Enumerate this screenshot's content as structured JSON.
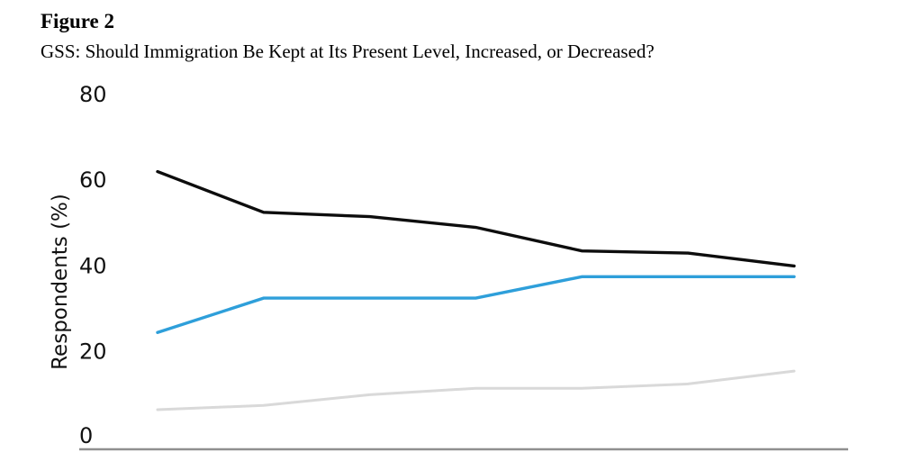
{
  "figure": {
    "label": "Figure 2",
    "subtitle": "GSS: Should Immigration Be Kept at Its Present Level, Increased, or Decreased?"
  },
  "chart_data": {
    "type": "line",
    "title": "Figure 2",
    "subtitle": "GSS: Should Immigration Be Kept at Its Present Level, Increased, or Decreased?",
    "ylabel": "Respondents (%)",
    "xlabel": "",
    "ylim": [
      0,
      80
    ],
    "yticks": [
      "80",
      "60",
      "40",
      "20",
      "0"
    ],
    "x": [
      1,
      2,
      3,
      4,
      5,
      6,
      7
    ],
    "x_tick_labels_visible": false,
    "grid": false,
    "legend": "none",
    "series": [
      {
        "name": "black-line",
        "color": "#0d0d0d",
        "stroke_width": 3.4,
        "values": [
          62,
          52.5,
          51.5,
          49,
          43.5,
          43,
          40
        ]
      },
      {
        "name": "blue-line",
        "color": "#2e9fda",
        "stroke_width": 3.4,
        "values": [
          24.5,
          32.5,
          32.5,
          32.5,
          37.5,
          37.5,
          37.5
        ]
      },
      {
        "name": "gray-line",
        "color": "#d9d9d9",
        "stroke_width": 3.0,
        "values": [
          6.5,
          7.5,
          10,
          11.5,
          11.5,
          12.5,
          15.5
        ]
      }
    ],
    "colors": {
      "axis_line": "#8f8f8f",
      "text": "#000000"
    }
  }
}
